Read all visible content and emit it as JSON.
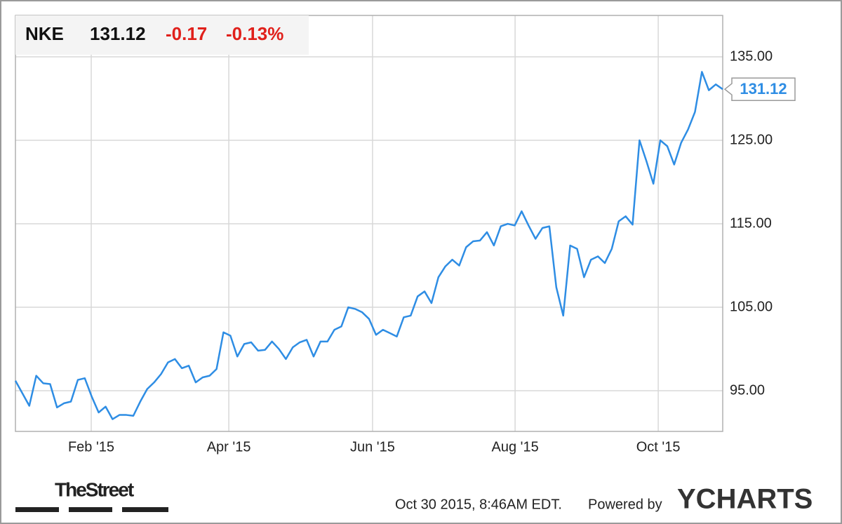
{
  "chart_data": {
    "type": "line",
    "ticker": "NKE",
    "last": "131.12",
    "change": "-0.17",
    "change_pct": "-0.13%",
    "series": [
      {
        "name": "NKE",
        "color": "#2e8de4",
        "values": [
          96.2,
          94.7,
          93.2,
          96.8,
          95.9,
          95.8,
          93.0,
          93.5,
          93.7,
          96.3,
          96.5,
          94.3,
          92.4,
          93.1,
          91.6,
          92.1,
          92.1,
          92.0,
          93.7,
          95.2,
          96.0,
          97.0,
          98.4,
          98.8,
          97.7,
          98.0,
          96.0,
          96.6,
          96.8,
          97.6,
          102.0,
          101.6,
          99.1,
          100.6,
          100.8,
          99.8,
          99.9,
          100.9,
          100.0,
          98.8,
          100.2,
          100.8,
          101.1,
          99.1,
          100.9,
          100.9,
          102.3,
          102.7,
          105.0,
          104.8,
          104.4,
          103.6,
          101.7,
          102.3,
          101.9,
          101.5,
          103.8,
          104.0,
          106.3,
          106.9,
          105.5,
          108.6,
          109.9,
          110.7,
          110.0,
          112.2,
          112.9,
          113.0,
          114.0,
          112.4,
          114.7,
          115.0,
          114.8,
          116.5,
          114.8,
          113.2,
          114.5,
          114.7,
          107.4,
          104.0,
          112.4,
          112.0,
          108.6,
          110.7,
          111.1,
          110.3,
          112.0,
          115.3,
          115.9,
          114.9,
          125.0,
          122.5,
          119.8,
          125.0,
          124.3,
          122.1,
          124.7,
          126.3,
          128.4,
          133.2,
          131.0,
          131.7,
          131.12
        ]
      }
    ],
    "xlim": [
      0,
      102
    ],
    "xticks": [
      {
        "value": 10.93,
        "label": "Feb '15"
      },
      {
        "value": 30.77,
        "label": "Apr '15"
      },
      {
        "value": 51.5,
        "label": "Jun '15"
      },
      {
        "value": 72.06,
        "label": "Aug '15"
      },
      {
        "value": 92.7,
        "label": "Oct '15"
      }
    ],
    "ylim": [
      90.13,
      139.96
    ],
    "yticks": [
      {
        "value": 95,
        "label": "95.00"
      },
      {
        "value": 105,
        "label": "105.00"
      },
      {
        "value": 115,
        "label": "115.00"
      },
      {
        "value": 125,
        "label": "125.00"
      },
      {
        "value": 135,
        "label": "135.00"
      }
    ],
    "grid": true,
    "timestamp": "Oct 30 2015, 8:46AM EDT.",
    "powered_by": "Powered by",
    "brand": "YCHARTS",
    "publisher": "TheStreet"
  }
}
